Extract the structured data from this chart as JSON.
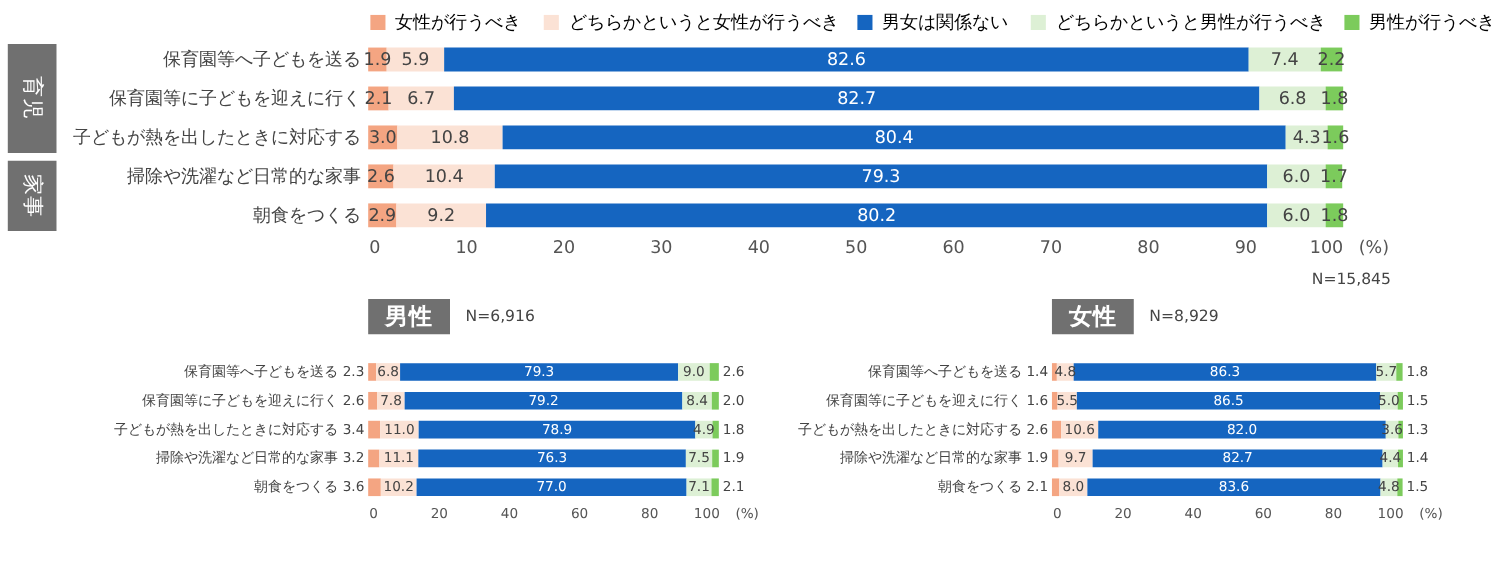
{
  "chart_data": [
    {
      "type": "bar",
      "orientation": "horizontal",
      "stacked": true,
      "legend": "top",
      "grid": false,
      "xlabel": "(%)",
      "categories": [
        "保育園等へ子どもを送る",
        "保育園等に子どもを迎えに行く",
        "子どもが熱を出したときに対応する",
        "掃除や洗濯など日常的な家事",
        "朝食をつくる"
      ],
      "xlim": [
        0,
        100
      ],
      "xticks": [
        0,
        10,
        20,
        30,
        40,
        50,
        60,
        70,
        80,
        90,
        100
      ],
      "annotations": [
        "育児",
        "家事",
        "N=15,845"
      ],
      "series": [
        {
          "name": "女性が行うべき",
          "color": "#f4a582",
          "values": [
            1.9,
            2.1,
            3.0,
            2.6,
            2.9
          ],
          "value_labels": [
            "1.9",
            "2.1",
            "3.0",
            "2.6",
            "2.9"
          ]
        },
        {
          "name": "どちらかというと女性が行うべき",
          "color": "#fbe2d5",
          "values": [
            5.9,
            6.7,
            10.8,
            10.4,
            9.2
          ],
          "value_labels": [
            "5.9",
            "6.7",
            "10.8",
            "10.4",
            "9.2"
          ]
        },
        {
          "name": "男女は関係ない",
          "color": "#1565c0",
          "values": [
            82.6,
            82.7,
            80.4,
            79.3,
            80.2
          ],
          "value_labels": [
            "82.6",
            "82.7",
            "80.4",
            "79.3",
            "80.2"
          ]
        },
        {
          "name": "どちらかというと男性が行うべき",
          "color": "#ddf0d5",
          "values": [
            7.4,
            6.8,
            4.3,
            6.0,
            6.0
          ],
          "value_labels": [
            "7.4",
            "6.8",
            "4.3",
            "6.0",
            "6.0"
          ]
        },
        {
          "name": "男性が行うべき",
          "color": "#7ccb5c",
          "values": [
            2.2,
            1.8,
            1.6,
            1.7,
            1.8
          ],
          "value_labels": [
            "2.2",
            "1.8",
            "1.6",
            "1.7",
            "1.8"
          ]
        }
      ]
    },
    {
      "type": "bar",
      "orientation": "horizontal",
      "stacked": true,
      "grid": false,
      "title": "男性",
      "xlabel": "(%)",
      "categories": [
        "保育園等へ子どもを送る",
        "保育園等に子どもを迎えに行く",
        "子どもが熱を出したときに対応する",
        "掃除や洗濯など日常的な家事",
        "朝食をつくる"
      ],
      "xlim": [
        0,
        100
      ],
      "xticks": [
        0,
        20,
        40,
        60,
        80,
        100
      ],
      "annotations": [
        "N=6,916"
      ],
      "series": [
        {
          "color": "#f4a582",
          "values": [
            2.3,
            2.6,
            3.4,
            3.2,
            3.6
          ],
          "value_labels": [
            "2.3",
            "2.6",
            "3.4",
            "3.2",
            "3.6"
          ]
        },
        {
          "color": "#fbe2d5",
          "values": [
            6.8,
            7.8,
            11.0,
            11.1,
            10.2
          ],
          "value_labels": [
            "6.8",
            "7.8",
            "11.0",
            "11.1",
            "10.2"
          ]
        },
        {
          "color": "#1565c0",
          "values": [
            79.3,
            79.2,
            78.9,
            76.3,
            77.0
          ],
          "value_labels": [
            "79.3",
            "79.2",
            "78.9",
            "76.3",
            "77.0"
          ]
        },
        {
          "color": "#ddf0d5",
          "values": [
            9.0,
            8.4,
            4.9,
            7.5,
            7.1
          ],
          "value_labels": [
            "9.0",
            "8.4",
            "4.9",
            "7.5",
            "7.1"
          ]
        },
        {
          "color": "#7ccb5c",
          "values": [
            2.6,
            2.0,
            1.8,
            1.9,
            2.1
          ],
          "value_labels": [
            "2.6",
            "2.0",
            "1.8",
            "1.9",
            "2.1"
          ]
        }
      ]
    },
    {
      "type": "bar",
      "orientation": "horizontal",
      "stacked": true,
      "grid": false,
      "title": "女性",
      "xlabel": "(%)",
      "categories": [
        "保育園等へ子どもを送る",
        "保育園等に子どもを迎えに行く",
        "子どもが熱を出したときに対応する",
        "掃除や洗濯など日常的な家事",
        "朝食をつくる"
      ],
      "xlim": [
        0,
        100
      ],
      "xticks": [
        0,
        20,
        40,
        60,
        80,
        100
      ],
      "annotations": [
        "N=8,929"
      ],
      "series": [
        {
          "color": "#f4a582",
          "values": [
            1.4,
            1.6,
            2.6,
            1.9,
            2.1
          ],
          "value_labels": [
            "1.4",
            "1.6",
            "2.6",
            "1.9",
            "2.1"
          ]
        },
        {
          "color": "#fbe2d5",
          "values": [
            4.8,
            5.5,
            10.6,
            9.7,
            8.0
          ],
          "value_labels": [
            "4.8",
            "5.5",
            "10.6",
            "9.7",
            "8.0"
          ]
        },
        {
          "color": "#1565c0",
          "values": [
            86.3,
            86.5,
            82.0,
            82.7,
            83.6
          ],
          "value_labels": [
            "86.3",
            "86.5",
            "82.0",
            "82.7",
            "83.6"
          ]
        },
        {
          "color": "#ddf0d5",
          "values": [
            5.7,
            5.0,
            3.6,
            4.4,
            4.8
          ],
          "value_labels": [
            "5.7",
            "5.0",
            "3.6",
            "4.4",
            "4.8"
          ]
        },
        {
          "color": "#7ccb5c",
          "values": [
            1.8,
            1.5,
            1.3,
            1.4,
            1.5
          ],
          "value_labels": [
            "1.8",
            "1.5",
            "1.3",
            "1.4",
            "1.5"
          ]
        }
      ]
    }
  ]
}
